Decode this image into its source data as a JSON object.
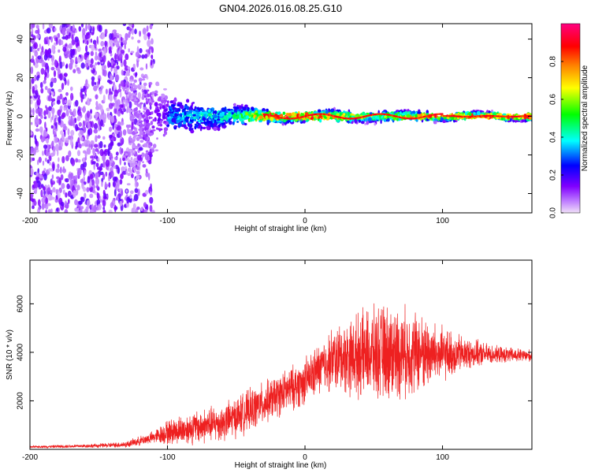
{
  "title": "GN04.2026.016.08.25.G10",
  "chart_data": [
    {
      "type": "heatmap",
      "name": "spectrogram",
      "xlabel": "Height of straight line (km)",
      "ylabel": "Frequency (Hz)",
      "xlim": [
        -200,
        165
      ],
      "ylim": [
        -50,
        48
      ],
      "xticks": [
        -200,
        -100,
        0,
        100
      ],
      "xtick_labels": [
        "-200",
        "-100",
        "0",
        "100"
      ],
      "yticks": [
        -40,
        -20,
        0,
        20,
        40
      ],
      "ytick_labels": [
        "-40",
        "-20",
        "0",
        "20",
        "40"
      ],
      "colorbar": {
        "label": "Normalized spectral amplitude",
        "range": [
          0,
          1
        ],
        "ticks": [
          0.0,
          0.2,
          0.4,
          0.6,
          0.8
        ],
        "tick_labels": [
          "0.0",
          "0.2",
          "0.4",
          "0.6",
          "0.8"
        ],
        "colormap": [
          "#f0e0f8",
          "#8000ff",
          "#0000ff",
          "#00ffff",
          "#00ff00",
          "#ffff00",
          "#ff8000",
          "#ff0000",
          "#ff0080"
        ]
      },
      "description_points": [
        {
          "x": -200,
          "spread_hz": 48,
          "amplitude": 0.1
        },
        {
          "x": -130,
          "spread_hz": 48,
          "amplitude": 0.12
        },
        {
          "x": -100,
          "spread_hz": 10,
          "amplitude": 0.35
        },
        {
          "x": -50,
          "spread_hz": 6,
          "amplitude": 0.45
        },
        {
          "x": -25,
          "spread_hz": 3,
          "amplitude": 0.9
        },
        {
          "x": 0,
          "spread_hz": 3,
          "amplitude": 0.9
        },
        {
          "x": 50,
          "spread_hz": 3,
          "amplitude": 0.6
        },
        {
          "x": 100,
          "spread_hz": 2,
          "amplitude": 0.9
        },
        {
          "x": 165,
          "spread_hz": 2,
          "amplitude": 0.9
        }
      ]
    },
    {
      "type": "line",
      "name": "snr",
      "color": "#ee2020",
      "xlabel": "Height of straight line (km)",
      "ylabel": "SNR (10 * v/v)",
      "xlim": [
        -200,
        165
      ],
      "ylim": [
        0,
        7800
      ],
      "xticks": [
        -200,
        -100,
        0,
        100
      ],
      "xtick_labels": [
        "-200",
        "-100",
        "0",
        "100"
      ],
      "yticks": [
        2000,
        4000,
        6000
      ],
      "ytick_labels": [
        "2000",
        "4000",
        "6000"
      ],
      "envelope": {
        "x": [
          -200,
          -150,
          -130,
          -110,
          -100,
          -80,
          -60,
          -40,
          -20,
          0,
          10,
          20,
          40,
          60,
          80,
          100,
          120,
          140,
          165
        ],
        "mean": [
          100,
          150,
          200,
          500,
          700,
          900,
          1100,
          1600,
          2200,
          2800,
          3300,
          3700,
          3900,
          4000,
          4000,
          3900,
          3950,
          3900,
          3850
        ],
        "amplitude": [
          50,
          100,
          150,
          300,
          600,
          800,
          900,
          1000,
          1000,
          1100,
          1200,
          1500,
          2000,
          2300,
          2000,
          1300,
          700,
          400,
          300
        ]
      }
    }
  ]
}
